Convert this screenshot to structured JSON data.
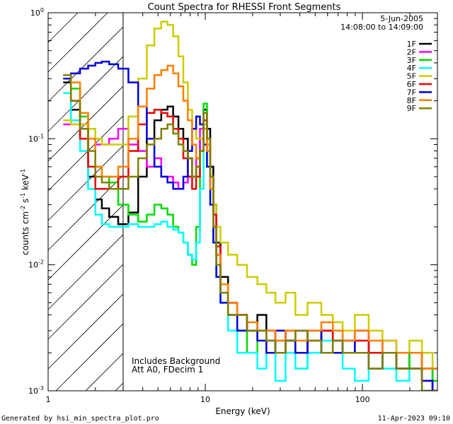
{
  "chart_data": {
    "type": "line",
    "title": "Count Spectra for RHESSI Front Segments",
    "xlabel": "Energy (keV)",
    "ylabel": {
      "main": "counts cm",
      "sup1": "-2",
      "mid": " s",
      "sup2": "-1",
      "end": " keV",
      "sup3": "-1"
    },
    "xscale": "log",
    "yscale": "log",
    "xlim": [
      1,
      300
    ],
    "ylim": [
      0.001,
      1
    ],
    "x_ticks": [
      {
        "v": 1,
        "label": "1"
      },
      {
        "v": 10,
        "label": "10"
      },
      {
        "v": 100,
        "label": "100"
      }
    ],
    "y_ticks": [
      {
        "v": 1,
        "base": "10",
        "exp": "0"
      },
      {
        "v": 0.1,
        "base": "10",
        "exp": "-1"
      },
      {
        "v": 0.01,
        "base": "10",
        "exp": "-2"
      },
      {
        "v": 0.001,
        "base": "10",
        "exp": "-3"
      }
    ],
    "date": "5-Jun-2005",
    "time_range": "14:08:00 to 14:09:00",
    "attenuator_cutoff_kev": 3,
    "annotations": [
      "Includes Background",
      "Att A0, FDecim 1"
    ],
    "footer_left": "Generated by hsi_min_spectra_plot.pro",
    "footer_right": "11-Apr-2023 09:10",
    "series": [
      {
        "name": "1F",
        "color": "#000000",
        "x": [
          1.3,
          1.5,
          1.7,
          1.9,
          2.1,
          2.3,
          2.6,
          3.0,
          3.5,
          4.0,
          4.5,
          5.0,
          5.5,
          6.0,
          6.5,
          7.0,
          7.5,
          8.0,
          8.5,
          9.0,
          9.5,
          10.0,
          10.5,
          11.0,
          11.5,
          12.0,
          13,
          15,
          17,
          20,
          23,
          26,
          30,
          35,
          40,
          50,
          60,
          70,
          80,
          100,
          120,
          150,
          180,
          220,
          260,
          300
        ],
        "y": [
          0.28,
          0.17,
          0.1,
          0.05,
          0.033,
          0.028,
          0.024,
          0.021,
          0.026,
          0.05,
          0.1,
          0.14,
          0.17,
          0.18,
          0.15,
          0.12,
          0.1,
          0.07,
          0.05,
          0.06,
          0.1,
          0.17,
          0.12,
          0.06,
          0.03,
          0.015,
          0.008,
          0.005,
          0.004,
          0.003,
          0.004,
          0.003,
          0.002,
          0.0025,
          0.003,
          0.002,
          0.003,
          0.0025,
          0.002,
          0.003,
          0.002,
          0.002,
          0.0015,
          0.002,
          0.0015,
          0.001
        ]
      },
      {
        "name": "2F",
        "color": "#ff00ff",
        "x": [
          1.3,
          1.5,
          1.7,
          1.9,
          2.1,
          2.3,
          2.6,
          3.0,
          3.5,
          4.0,
          4.5,
          5.0,
          5.5,
          6.0,
          6.5,
          7.0,
          7.5,
          8.0,
          8.5,
          9.0,
          9.5,
          10.0,
          10.5,
          11.0,
          11.5,
          12.0,
          13,
          15,
          17,
          20,
          23,
          26,
          30,
          35,
          40,
          50,
          60,
          70,
          80,
          100,
          120,
          150,
          180,
          220,
          260,
          300
        ],
        "y": [
          0.13,
          0.14,
          0.13,
          0.1,
          0.09,
          0.09,
          0.1,
          0.12,
          0.09,
          0.08,
          0.06,
          0.07,
          0.05,
          0.05,
          0.045,
          0.04,
          0.045,
          0.05,
          0.05,
          0.07,
          0.12,
          0.14,
          0.09,
          0.04,
          0.02,
          0.012,
          0.006,
          0.005,
          0.004,
          0.003,
          0.003,
          0.002,
          0.003,
          0.002,
          0.003,
          0.002,
          0.003,
          0.0025,
          0.002,
          0.003,
          0.002,
          0.0025,
          0.002,
          0.002,
          0.0015,
          0.0015
        ]
      },
      {
        "name": "3F",
        "color": "#00dd00",
        "x": [
          1.3,
          1.5,
          1.7,
          1.9,
          2.1,
          2.3,
          2.6,
          3.0,
          3.5,
          4.0,
          4.5,
          5.0,
          5.5,
          6.0,
          6.5,
          7.0,
          7.5,
          8.0,
          8.5,
          9.0,
          9.5,
          10.0,
          10.5,
          11.0,
          11.5,
          12.0,
          13,
          15,
          17,
          20,
          23,
          26,
          30,
          35,
          40,
          50,
          60,
          70,
          80,
          100,
          120,
          150,
          180,
          220,
          260,
          300
        ],
        "y": [
          0.3,
          0.25,
          0.15,
          0.1,
          0.06,
          0.05,
          0.045,
          0.03,
          0.025,
          0.022,
          0.025,
          0.03,
          0.028,
          0.025,
          0.02,
          0.018,
          0.015,
          0.012,
          0.01,
          0.02,
          0.08,
          0.19,
          0.1,
          0.05,
          0.025,
          0.012,
          0.006,
          0.004,
          0.003,
          0.002,
          0.003,
          0.002,
          0.0025,
          0.002,
          0.0015,
          0.002,
          0.003,
          0.002,
          0.0025,
          0.002,
          0.002,
          0.0015,
          0.0015,
          0.002,
          0.0015,
          0.0012
        ]
      },
      {
        "name": "4F",
        "color": "#00ffff",
        "x": [
          1.3,
          1.5,
          1.7,
          1.9,
          2.1,
          2.3,
          2.6,
          3.0,
          3.5,
          4.0,
          4.5,
          5.0,
          5.5,
          6.0,
          6.5,
          7.0,
          7.5,
          8.0,
          8.5,
          9.0,
          9.5,
          10.0,
          10.5,
          11.0,
          11.5,
          12.0,
          13,
          15,
          17,
          20,
          23,
          26,
          30,
          35,
          40,
          50,
          60,
          70,
          80,
          100,
          120,
          150,
          180,
          220,
          260,
          300
        ],
        "y": [
          0.23,
          0.14,
          0.08,
          0.04,
          0.025,
          0.021,
          0.02,
          0.02,
          0.021,
          0.02,
          0.02,
          0.021,
          0.022,
          0.02,
          0.019,
          0.018,
          0.015,
          0.012,
          0.011,
          0.015,
          0.04,
          0.09,
          0.06,
          0.03,
          0.015,
          0.008,
          0.005,
          0.003,
          0.002,
          0.002,
          0.0015,
          0.002,
          0.0012,
          0.002,
          0.0015,
          0.002,
          0.0025,
          0.002,
          0.0015,
          0.0012,
          0.002,
          0.0015,
          0.0012,
          0.0015,
          0.001,
          0.001
        ]
      },
      {
        "name": "5F",
        "color": "#cccc00",
        "x": [
          1.3,
          1.5,
          1.7,
          1.9,
          2.1,
          2.3,
          2.6,
          3.0,
          3.5,
          4.0,
          4.5,
          5.0,
          5.5,
          6.0,
          6.5,
          7.0,
          7.5,
          8.0,
          8.5,
          9.0,
          9.5,
          10.0,
          10.5,
          11.0,
          11.5,
          12.0,
          13,
          15,
          17,
          20,
          23,
          26,
          30,
          35,
          40,
          50,
          60,
          70,
          80,
          100,
          120,
          150,
          180,
          220,
          260,
          300
        ],
        "y": [
          0.14,
          0.13,
          0.13,
          0.12,
          0.1,
          0.09,
          0.09,
          0.09,
          0.15,
          0.3,
          0.55,
          0.75,
          0.85,
          0.8,
          0.65,
          0.45,
          0.28,
          0.17,
          0.12,
          0.1,
          0.1,
          0.13,
          0.09,
          0.05,
          0.03,
          0.02,
          0.015,
          0.012,
          0.01,
          0.008,
          0.007,
          0.006,
          0.005,
          0.006,
          0.004,
          0.005,
          0.004,
          0.0035,
          0.003,
          0.004,
          0.003,
          0.0025,
          0.002,
          0.0025,
          0.002,
          0.0015
        ]
      },
      {
        "name": "6F",
        "color": "#ee0000",
        "x": [
          1.3,
          1.5,
          1.7,
          1.9,
          2.1,
          2.3,
          2.6,
          3.0,
          3.5,
          4.0,
          4.5,
          5.0,
          5.5,
          6.0,
          6.5,
          7.0,
          7.5,
          8.0,
          8.5,
          9.0,
          9.5,
          10.0,
          10.5,
          11.0,
          11.5,
          12.0,
          13,
          15,
          17,
          20,
          23,
          26,
          30,
          35,
          40,
          50,
          60,
          70,
          80,
          100,
          120,
          150,
          180,
          220,
          260,
          300
        ],
        "y": [
          0.3,
          0.2,
          0.1,
          0.06,
          0.04,
          0.04,
          0.04,
          0.05,
          0.08,
          0.13,
          0.16,
          0.17,
          0.16,
          0.15,
          0.12,
          0.1,
          0.07,
          0.05,
          0.04,
          0.05,
          0.08,
          0.14,
          0.1,
          0.05,
          0.025,
          0.014,
          0.007,
          0.005,
          0.004,
          0.003,
          0.003,
          0.0025,
          0.002,
          0.003,
          0.002,
          0.0025,
          0.003,
          0.002,
          0.002,
          0.0025,
          0.002,
          0.002,
          0.0015,
          0.0015,
          0.0012,
          0.001
        ]
      },
      {
        "name": "7F",
        "color": "#0000dd",
        "x": [
          1.3,
          1.5,
          1.7,
          1.9,
          2.1,
          2.3,
          2.6,
          3.0,
          3.5,
          4.0,
          4.5,
          5.0,
          5.5,
          6.0,
          6.5,
          7.0,
          7.5,
          8.0,
          8.5,
          9.0,
          9.5,
          10.0,
          10.5,
          11.0,
          11.5,
          12.0,
          13,
          15,
          17,
          20,
          23,
          26,
          30,
          35,
          40,
          50,
          60,
          70,
          80,
          100,
          120,
          150,
          180,
          220,
          260,
          300
        ],
        "y": [
          0.3,
          0.33,
          0.36,
          0.38,
          0.4,
          0.41,
          0.39,
          0.36,
          0.28,
          0.18,
          0.1,
          0.06,
          0.05,
          0.045,
          0.04,
          0.04,
          0.05,
          0.08,
          0.12,
          0.15,
          0.13,
          0.09,
          0.06,
          0.03,
          0.015,
          0.008,
          0.005,
          0.004,
          0.003,
          0.003,
          0.0025,
          0.002,
          0.003,
          0.0025,
          0.002,
          0.003,
          0.002,
          0.002,
          0.0025,
          0.002,
          0.0015,
          0.002,
          0.0015,
          0.0015,
          0.0012,
          0.001
        ]
      },
      {
        "name": "8F",
        "color": "#ff7f00",
        "x": [
          1.3,
          1.5,
          1.7,
          1.9,
          2.1,
          2.3,
          2.6,
          3.0,
          3.5,
          4.0,
          4.5,
          5.0,
          5.5,
          6.0,
          6.5,
          7.0,
          7.5,
          8.0,
          8.5,
          9.0,
          9.5,
          10.0,
          10.5,
          11.0,
          11.5,
          12.0,
          13,
          15,
          17,
          20,
          23,
          26,
          30,
          35,
          40,
          50,
          60,
          70,
          80,
          100,
          120,
          150,
          180,
          220,
          260,
          300
        ],
        "y": [
          0.32,
          0.28,
          0.16,
          0.1,
          0.06,
          0.05,
          0.05,
          0.06,
          0.1,
          0.18,
          0.25,
          0.32,
          0.35,
          0.38,
          0.33,
          0.26,
          0.2,
          0.14,
          0.09,
          0.07,
          0.08,
          0.12,
          0.08,
          0.04,
          0.02,
          0.012,
          0.007,
          0.005,
          0.004,
          0.0035,
          0.003,
          0.003,
          0.0025,
          0.003,
          0.0025,
          0.003,
          0.0035,
          0.003,
          0.0025,
          0.003,
          0.0025,
          0.002,
          0.002,
          0.002,
          0.0015,
          0.0015
        ]
      },
      {
        "name": "9F",
        "color": "#808000",
        "x": [
          1.3,
          1.5,
          1.7,
          1.9,
          2.1,
          2.3,
          2.6,
          3.0,
          3.5,
          4.0,
          4.5,
          5.0,
          5.5,
          6.0,
          6.5,
          7.0,
          7.5,
          8.0,
          8.5,
          9.0,
          9.5,
          10.0,
          10.5,
          11.0,
          11.5,
          12.0,
          13,
          15,
          17,
          20,
          23,
          26,
          30,
          35,
          40,
          50,
          60,
          70,
          80,
          100,
          120,
          150,
          180,
          220,
          260,
          300
        ],
        "y": [
          0.32,
          0.2,
          0.12,
          0.08,
          0.05,
          0.045,
          0.04,
          0.04,
          0.05,
          0.07,
          0.09,
          0.1,
          0.12,
          0.13,
          0.11,
          0.09,
          0.08,
          0.07,
          0.05,
          0.06,
          0.08,
          0.16,
          0.1,
          0.05,
          0.02,
          0.01,
          0.006,
          0.004,
          0.004,
          0.003,
          0.003,
          0.0025,
          0.002,
          0.0025,
          0.003,
          0.0025,
          0.002,
          0.0025,
          0.002,
          0.002,
          0.0015,
          0.002,
          0.0015,
          0.0015,
          0.001,
          0.001
        ]
      }
    ]
  }
}
